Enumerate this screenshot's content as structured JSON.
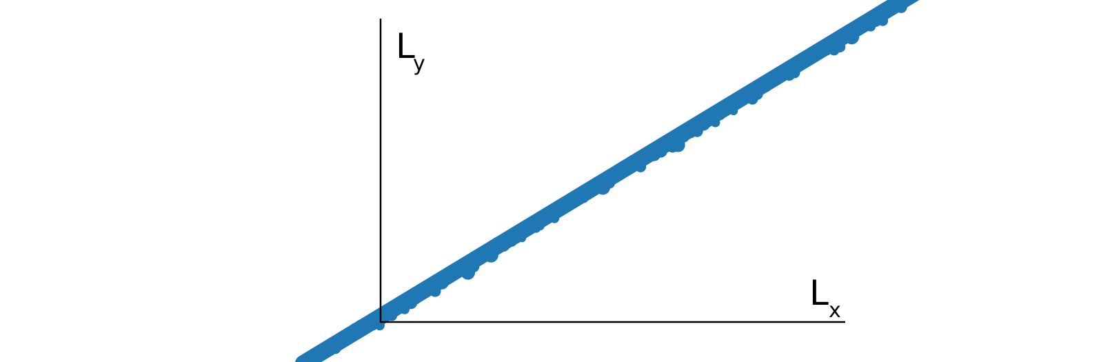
{
  "axes": {
    "y_label": {
      "main": "L",
      "sub": "y"
    },
    "x_label": {
      "main": "L",
      "sub": "x"
    }
  }
}
